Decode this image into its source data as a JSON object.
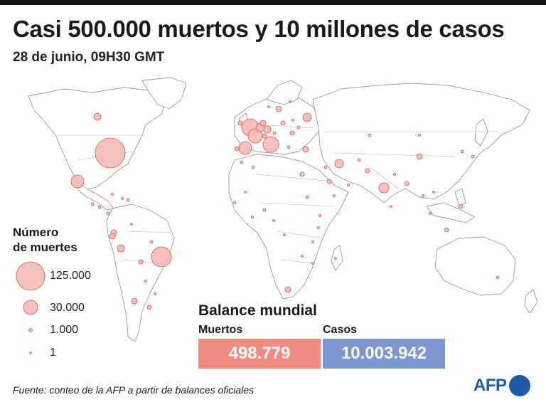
{
  "title": "Casi 500.000 muertos y 10 millones de casos",
  "subtitle": "28 de junio, 09H30 GMT",
  "legend": {
    "title_line1": "Número",
    "title_line2": "de muertes",
    "items": [
      {
        "label": "125.000",
        "value": 125000
      },
      {
        "label": "30.000",
        "value": 30000
      },
      {
        "label": "1.000",
        "value": 1000
      },
      {
        "label": "1",
        "value": 1
      }
    ]
  },
  "balance": {
    "title": "Balance mundial",
    "deaths_label": "Muertos",
    "deaths_value": "498.779",
    "cases_label": "Casos",
    "cases_value": "10.003.942"
  },
  "footer": "Fuente: conteo de la AFP a partir de balances oficiales",
  "logo": "AFP",
  "colors": {
    "bubble_fill": "#f4b8b0",
    "bubble_stroke": "#d9534f",
    "deaths_box": "#f08c82",
    "cases_box": "#7a97d0",
    "brand": "#1d5aa8"
  }
}
